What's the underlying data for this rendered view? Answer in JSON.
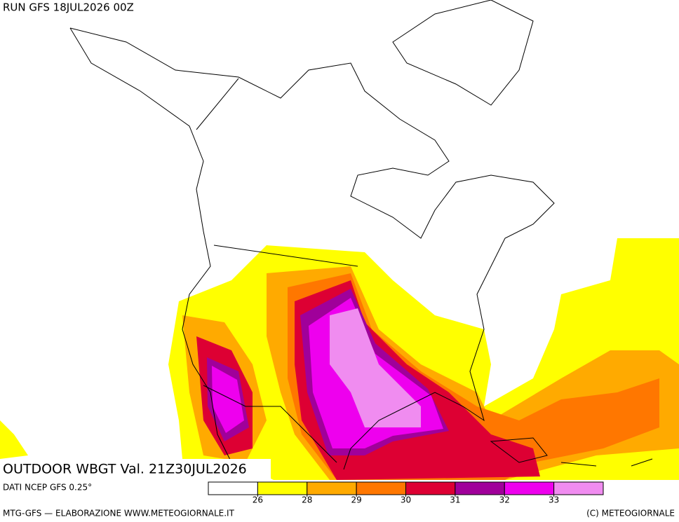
{
  "header": {
    "run": "RUN GFS 18JUL2026 00Z",
    "title": "OUTDOOR WBGT Val. 21Z30JUL2026",
    "source": "DATI NCEP GFS 0.25°",
    "credit": "MTG-GFS — ELABORAZIONE WWW.METEOGIORNALE.IT",
    "copyright": "(C) METEOGIORNALE"
  },
  "legend": {
    "colors": [
      "#ffffff",
      "#ffff00",
      "#ffaa00",
      "#ff7700",
      "#dd0033",
      "#a0009a",
      "#ee00ee",
      "#f08cf0"
    ],
    "ticks": [
      26,
      28,
      29,
      30,
      31,
      32,
      33
    ]
  }
}
